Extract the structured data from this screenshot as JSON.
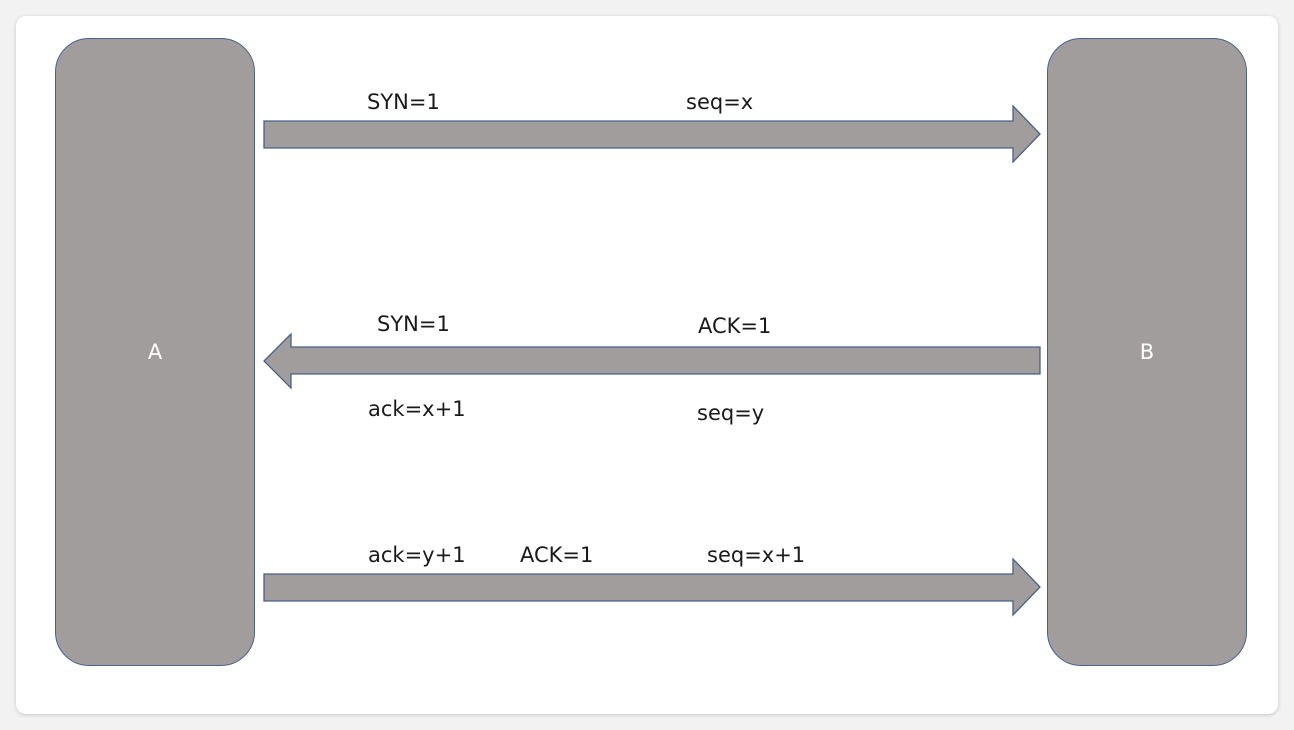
{
  "colors": {
    "shape_fill": "#a19d9c",
    "shape_stroke": "#4a6088"
  },
  "nodes": {
    "a": {
      "label": "A"
    },
    "b": {
      "label": "B"
    }
  },
  "messages": [
    {
      "direction": "A-to-B",
      "labels": {
        "syn": "SYN=1",
        "seq": "seq=x"
      }
    },
    {
      "direction": "B-to-A",
      "labels": {
        "syn": "SYN=1",
        "ack_flag": "ACK=1",
        "ack": "ack=x+1",
        "seq": "seq=y"
      }
    },
    {
      "direction": "A-to-B",
      "labels": {
        "ack": "ack=y+1",
        "ack_flag": "ACK=1",
        "seq": "seq=x+1"
      }
    }
  ]
}
